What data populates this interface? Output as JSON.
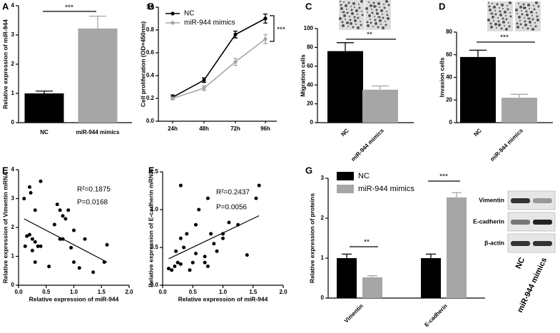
{
  "chart_data": [
    {
      "type": "bar",
      "label": "A",
      "ylabel": "Relative expression of miR-944",
      "categories": [
        "NC",
        "miR-944 mimics"
      ],
      "values": [
        1.0,
        3.22
      ],
      "errors": [
        0.08,
        0.42
      ],
      "colors": [
        "#000000",
        "#a6a6a6"
      ],
      "ylim": [
        0,
        4
      ],
      "yticks": [
        0,
        1,
        2,
        3,
        4
      ],
      "annotations": [
        "***"
      ]
    },
    {
      "type": "line",
      "label": "B",
      "ylabel": "Cell proliferation (OD=450nm)",
      "categories": [
        "24h",
        "48h",
        "72h",
        "96h"
      ],
      "series": [
        {
          "name": "NC",
          "color": "#000000",
          "values": [
            0.21,
            0.36,
            0.76,
            0.9
          ],
          "errors": [
            0.02,
            0.02,
            0.03,
            0.04
          ]
        },
        {
          "name": "miR-944 mimics",
          "color": "#a6a6a6",
          "values": [
            0.2,
            0.29,
            0.52,
            0.72
          ],
          "errors": [
            0.01,
            0.02,
            0.03,
            0.04
          ]
        }
      ],
      "ylim": [
        0,
        1
      ],
      "yticks": [
        {
          "value": 0,
          "label": "0.0"
        },
        0.2,
        0.4,
        0.6,
        0.8,
        {
          "value": 1,
          "label": "1.0"
        }
      ],
      "annotations": [
        "***"
      ]
    },
    {
      "type": "bar",
      "label": "C",
      "ylabel": "Migration cells",
      "categories": [
        "NC",
        "miR-944 mimics"
      ],
      "values": [
        76,
        35
      ],
      "errors": [
        9,
        4
      ],
      "colors": [
        "#000000",
        "#a6a6a6"
      ],
      "ylim": [
        0,
        100
      ],
      "yticks": [
        0,
        20,
        40,
        60,
        80,
        100
      ],
      "annotations": [
        "**"
      ]
    },
    {
      "type": "bar",
      "label": "D",
      "ylabel": "Invasion cells",
      "categories": [
        "NC",
        "miR-944 mimics"
      ],
      "values": [
        58,
        22
      ],
      "errors": [
        6,
        3
      ],
      "colors": [
        "#000000",
        "#a6a6a6"
      ],
      "ylim": [
        0,
        80
      ],
      "yticks": [
        0,
        20,
        40,
        60,
        80
      ],
      "annotations": [
        "***"
      ]
    },
    {
      "type": "scatter",
      "label": "E",
      "xlabel": "Relative expression of miR-944",
      "ylabel": "Relative expression of Vimentin mRNA",
      "x": [
        0.1,
        0.2,
        0.22,
        0.3,
        0.4,
        0.15,
        0.2,
        0.12,
        0.25,
        0.3,
        0.35,
        0.25,
        0.3,
        0.4,
        0.55,
        0.7,
        0.75,
        0.8,
        0.85,
        0.9,
        0.75,
        0.8,
        0.95,
        1.0,
        1.0,
        1.1,
        1.2,
        1.35,
        1.55,
        1.6,
        0.65
      ],
      "values": [
        3.0,
        3.4,
        3.2,
        2.6,
        3.6,
        1.7,
        1.75,
        1.35,
        1.6,
        1.5,
        1.35,
        1.2,
        0.8,
        1.35,
        0.65,
        2.8,
        2.6,
        2.4,
        2.3,
        2.6,
        1.6,
        1.6,
        1.3,
        1.9,
        0.8,
        0.6,
        1.6,
        0.45,
        0.8,
        1.4,
        2.1
      ],
      "color": "#000000",
      "fit": {
        "x": [
          0.1,
          1.6
        ],
        "values": [
          2.3,
          0.8
        ]
      },
      "xlim": [
        0,
        2
      ],
      "xticks": [
        {
          "value": 0,
          "label": "0.0"
        },
        0.5,
        {
          "value": 1,
          "label": "1.0"
        },
        1.5,
        {
          "value": 2,
          "label": "2.0"
        }
      ],
      "ylim": [
        0,
        4
      ],
      "yticks": [
        0,
        1,
        2,
        3,
        4
      ],
      "annotations": [
        "R²=0.1875",
        "P=0.0168"
      ]
    },
    {
      "type": "scatter",
      "label": "F",
      "xlabel": "Relative expression of miR-944",
      "ylabel": "Relative expression of E-cadherin mRNA",
      "x": [
        0.3,
        0.15,
        0.2,
        0.22,
        0.25,
        0.3,
        0.35,
        0.3,
        0.4,
        0.45,
        0.5,
        0.55,
        0.6,
        0.7,
        0.7,
        0.75,
        0.75,
        0.8,
        0.85,
        0.9,
        1.0,
        1.0,
        1.1,
        1.25,
        1.4,
        1.55,
        1.6,
        0.1,
        0.55
      ],
      "values": [
        1.32,
        0.2,
        0.25,
        0.45,
        0.3,
        0.28,
        0.5,
        0.62,
        0.68,
        0.2,
        0.3,
        0.42,
        1.0,
        0.3,
        0.38,
        0.25,
        1.15,
        0.68,
        0.55,
        0.45,
        0.62,
        0.68,
        0.83,
        0.8,
        0.4,
        1.15,
        1.32,
        0.22,
        0.8
      ],
      "color": "#000000",
      "fit": {
        "x": [
          0.1,
          1.6
        ],
        "values": [
          0.35,
          0.92
        ]
      },
      "xlim": [
        0,
        2
      ],
      "xticks": [
        {
          "value": 0,
          "label": "0.0"
        },
        0.5,
        {
          "value": 1,
          "label": "1.0"
        },
        1.5,
        {
          "value": 2,
          "label": "2.0"
        }
      ],
      "ylim": [
        0,
        1.5
      ],
      "yticks": [
        {
          "value": 0,
          "label": "0.0"
        },
        0.5,
        {
          "value": 1,
          "label": "1.0"
        },
        1.5
      ],
      "annotations": [
        "R²=0.2437",
        "P=0.0056"
      ]
    },
    {
      "type": "bar",
      "label": "G",
      "ylabel": "Relative expression of proteins",
      "categories": [
        "Vimentin",
        "E-cadherin"
      ],
      "series": [
        {
          "name": "NC",
          "color": "#000000",
          "values": [
            1.0,
            1.0
          ],
          "errors": [
            0.1,
            0.1
          ]
        },
        {
          "name": "miR-944 mimics",
          "color": "#a6a6a6",
          "values": [
            0.52,
            2.52
          ],
          "errors": [
            0.04,
            0.12
          ]
        }
      ],
      "ylim": [
        0,
        3
      ],
      "yticks": [
        0,
        1,
        2,
        3
      ],
      "annotations": [
        "**",
        "***"
      ],
      "blot": {
        "rows": [
          "Vimentin",
          "E-cadherin",
          "β-actin"
        ],
        "lanes": [
          "NC",
          "miR-944 mimics"
        ]
      }
    }
  ]
}
